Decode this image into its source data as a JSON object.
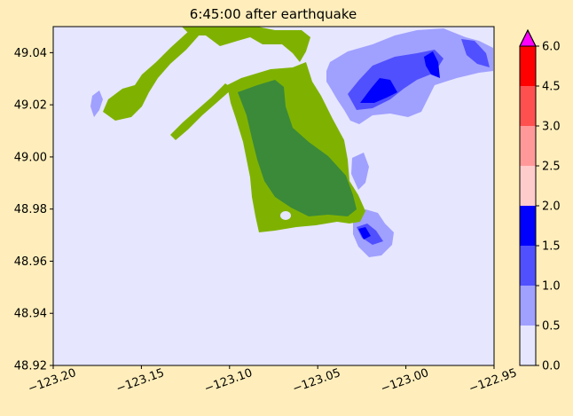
{
  "chart_data": {
    "type": "heatmap",
    "title": "6:45:00 after earthquake",
    "xlabel": "",
    "ylabel": "",
    "xlim": [
      -123.2,
      -122.95
    ],
    "ylim": [
      48.92,
      49.05
    ],
    "x_ticks": [
      -123.2,
      -123.15,
      -123.1,
      -123.05,
      -123.0,
      -122.95
    ],
    "x_tick_labels": [
      "−123.20",
      "−123.15",
      "−123.10",
      "−123.05",
      "−123.00",
      "−122.95"
    ],
    "y_ticks": [
      48.92,
      48.94,
      48.96,
      48.98,
      49.0,
      49.02,
      49.04
    ],
    "y_tick_labels": [
      "48.92",
      "48.94",
      "48.96",
      "48.98",
      "49.00",
      "49.02",
      "49.04"
    ],
    "grid": false,
    "background_color": "#E6E6FF",
    "land_colors": [
      "#7FB200",
      "#3A8A3A"
    ],
    "colorbar": {
      "levels": [
        0.0,
        0.5,
        1.0,
        1.5,
        2.0,
        2.5,
        3.0,
        4.5,
        6.0
      ],
      "tick_labels": [
        "0.0",
        "0.5",
        "1.0",
        "1.5",
        "2.0",
        "2.5",
        "3.0",
        "4.5",
        "6.0"
      ],
      "colors": [
        "#E6E6FF",
        "#A0A0FF",
        "#5050FF",
        "#0000FF",
        "#FFCCCC",
        "#FF9999",
        "#FF5050",
        "#FF0000"
      ],
      "extend_max_color": "#FF00FF"
    }
  }
}
